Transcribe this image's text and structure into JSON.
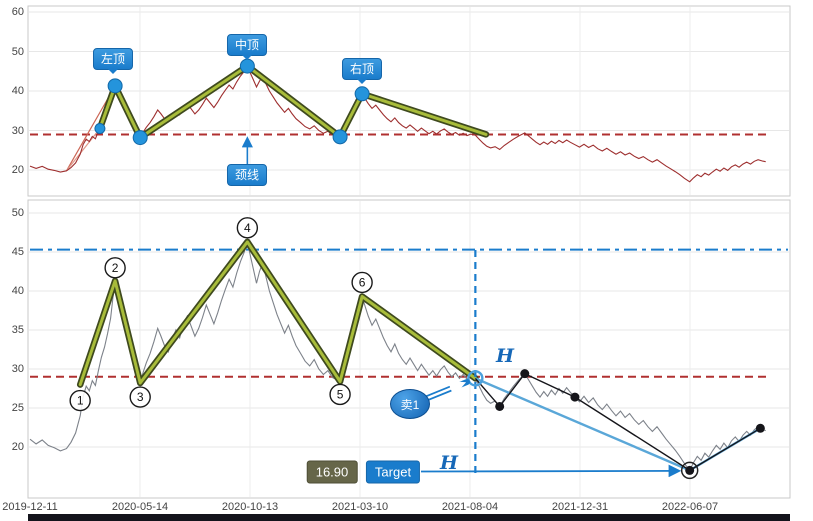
{
  "colors": {
    "accent_blue": "#1a7ccc",
    "light_blue": "#5aa7d8",
    "neckline_red": "#b03030",
    "price_red": "#9e2f2f",
    "price_gray": "#7d828a",
    "olive": "#a8bc3a",
    "olive_dark": "#3f4a1e",
    "black": "#15151a",
    "grid": "#e7e7e7",
    "target_badge_bg": "#666649"
  },
  "chart_data": {
    "type": "line",
    "x_axis": {
      "labels": [
        "2019-12-11",
        "2020-05-14",
        "2020-10-13",
        "2021-03-10",
        "2021-08-04",
        "2021-12-31",
        "2022-06-07"
      ],
      "fractions": [
        0,
        0.1447,
        0.2895,
        0.4342,
        0.5789,
        0.7237,
        0.8684
      ]
    },
    "price": {
      "name": "price",
      "points": [
        [
          0,
          21
        ],
        [
          0.008,
          20.4
        ],
        [
          0.016,
          20.9
        ],
        [
          0.024,
          20.2
        ],
        [
          0.032,
          19.9
        ],
        [
          0.04,
          19.5
        ],
        [
          0.048,
          19.8
        ],
        [
          0.054,
          20.6
        ],
        [
          0.06,
          21.8
        ],
        [
          0.066,
          24
        ],
        [
          0.07,
          26.5
        ],
        [
          0.074,
          27.8
        ],
        [
          0.078,
          27.2
        ],
        [
          0.082,
          28.5
        ],
        [
          0.086,
          27.9
        ],
        [
          0.09,
          29.8
        ],
        [
          0.094,
          31.5
        ],
        [
          0.098,
          32.8
        ],
        [
          0.102,
          34.5
        ],
        [
          0.106,
          36.5
        ],
        [
          0.109,
          39
        ],
        [
          0.112,
          41.3
        ],
        [
          0.115,
          40.2
        ],
        [
          0.118,
          38.8
        ],
        [
          0.122,
          37
        ],
        [
          0.126,
          35.5
        ],
        [
          0.13,
          33.8
        ],
        [
          0.134,
          31.5
        ],
        [
          0.138,
          30.2
        ],
        [
          0.142,
          29
        ],
        [
          0.145,
          28.2
        ],
        [
          0.149,
          29.6
        ],
        [
          0.153,
          30.8
        ],
        [
          0.158,
          32
        ],
        [
          0.163,
          33.5
        ],
        [
          0.168,
          35.2
        ],
        [
          0.172,
          34.3
        ],
        [
          0.177,
          33
        ],
        [
          0.182,
          32.2
        ],
        [
          0.187,
          33.8
        ],
        [
          0.192,
          35
        ],
        [
          0.197,
          34
        ],
        [
          0.202,
          35.8
        ],
        [
          0.207,
          36.8
        ],
        [
          0.212,
          35.5
        ],
        [
          0.217,
          34.2
        ],
        [
          0.222,
          35.2
        ],
        [
          0.227,
          36.6
        ],
        [
          0.232,
          38.2
        ],
        [
          0.237,
          37
        ],
        [
          0.242,
          35.8
        ],
        [
          0.247,
          37.2
        ],
        [
          0.252,
          38.8
        ],
        [
          0.257,
          40.2
        ],
        [
          0.262,
          41.5
        ],
        [
          0.267,
          40.5
        ],
        [
          0.272,
          42.3
        ],
        [
          0.277,
          43.8
        ],
        [
          0.282,
          45
        ],
        [
          0.286,
          46.3
        ],
        [
          0.29,
          44.5
        ],
        [
          0.294,
          42.8
        ],
        [
          0.298,
          41
        ],
        [
          0.302,
          42.5
        ],
        [
          0.306,
          43.6
        ],
        [
          0.31,
          42
        ],
        [
          0.315,
          40
        ],
        [
          0.32,
          38.5
        ],
        [
          0.325,
          37
        ],
        [
          0.33,
          35.8
        ],
        [
          0.335,
          34.6
        ],
        [
          0.34,
          35.6
        ],
        [
          0.345,
          34.2
        ],
        [
          0.35,
          33
        ],
        [
          0.356,
          32
        ],
        [
          0.362,
          31
        ],
        [
          0.368,
          30.4
        ],
        [
          0.374,
          31.2
        ],
        [
          0.38,
          30
        ],
        [
          0.386,
          29.3
        ],
        [
          0.392,
          29.8
        ],
        [
          0.398,
          28.9
        ],
        [
          0.404,
          28.6
        ],
        [
          0.408,
          28.4
        ],
        [
          0.412,
          29.5
        ],
        [
          0.416,
          31
        ],
        [
          0.42,
          32.8
        ],
        [
          0.424,
          34.5
        ],
        [
          0.428,
          36.2
        ],
        [
          0.432,
          37.8
        ],
        [
          0.437,
          39.3
        ],
        [
          0.441,
          38
        ],
        [
          0.445,
          36.8
        ],
        [
          0.45,
          35.6
        ],
        [
          0.455,
          36.4
        ],
        [
          0.46,
          35.2
        ],
        [
          0.465,
          34
        ],
        [
          0.47,
          33
        ],
        [
          0.475,
          32.2
        ],
        [
          0.48,
          33.2
        ],
        [
          0.485,
          32
        ],
        [
          0.49,
          31.2
        ],
        [
          0.495,
          30.6
        ],
        [
          0.5,
          31.4
        ],
        [
          0.505,
          30.6
        ],
        [
          0.51,
          29.8
        ],
        [
          0.515,
          30.6
        ],
        [
          0.52,
          29.9
        ],
        [
          0.525,
          29.2
        ],
        [
          0.53,
          29.8
        ],
        [
          0.535,
          29.1
        ],
        [
          0.54,
          29.9
        ],
        [
          0.545,
          30.4
        ],
        [
          0.55,
          29.6
        ],
        [
          0.555,
          29
        ],
        [
          0.56,
          29.5
        ],
        [
          0.565,
          28.8
        ],
        [
          0.57,
          29.3
        ],
        [
          0.575,
          28.7
        ],
        [
          0.58,
          29.1
        ],
        [
          0.586,
          28.8
        ],
        [
          0.591,
          27.8
        ],
        [
          0.596,
          26.8
        ],
        [
          0.601,
          26
        ],
        [
          0.606,
          25.6
        ],
        [
          0.612,
          25.9
        ],
        [
          0.618,
          25.2
        ],
        [
          0.624,
          26.2
        ],
        [
          0.63,
          27
        ],
        [
          0.636,
          27.8
        ],
        [
          0.643,
          28.6
        ],
        [
          0.651,
          29.4
        ],
        [
          0.656,
          28.6
        ],
        [
          0.661,
          27.8
        ],
        [
          0.666,
          27
        ],
        [
          0.671,
          26.4
        ],
        [
          0.676,
          27.1
        ],
        [
          0.681,
          26.5
        ],
        [
          0.686,
          27.3
        ],
        [
          0.691,
          26.7
        ],
        [
          0.696,
          27.5
        ],
        [
          0.701,
          26.9
        ],
        [
          0.706,
          27.6
        ],
        [
          0.711,
          27
        ],
        [
          0.717,
          26.4
        ],
        [
          0.723,
          25.8
        ],
        [
          0.729,
          26.5
        ],
        [
          0.735,
          25.7
        ],
        [
          0.741,
          26.3
        ],
        [
          0.747,
          25.4
        ],
        [
          0.753,
          24.8
        ],
        [
          0.759,
          25.5
        ],
        [
          0.765,
          24.7
        ],
        [
          0.771,
          24
        ],
        [
          0.777,
          24.6
        ],
        [
          0.783,
          23.8
        ],
        [
          0.789,
          24.3
        ],
        [
          0.795,
          23.5
        ],
        [
          0.801,
          22.9
        ],
        [
          0.807,
          23.4
        ],
        [
          0.813,
          22.6
        ],
        [
          0.819,
          22
        ],
        [
          0.825,
          22.6
        ],
        [
          0.831,
          21.8
        ],
        [
          0.837,
          21
        ],
        [
          0.843,
          20.3
        ],
        [
          0.849,
          19.6
        ],
        [
          0.855,
          18.8
        ],
        [
          0.861,
          17.9
        ],
        [
          0.868,
          17
        ],
        [
          0.873,
          18
        ],
        [
          0.878,
          18.8
        ],
        [
          0.883,
          18.3
        ],
        [
          0.888,
          19.2
        ],
        [
          0.893,
          18.7
        ],
        [
          0.898,
          19.5
        ],
        [
          0.903,
          20.2
        ],
        [
          0.908,
          19.7
        ],
        [
          0.913,
          20.5
        ],
        [
          0.918,
          19.9
        ],
        [
          0.923,
          20.8
        ],
        [
          0.928,
          21.3
        ],
        [
          0.933,
          20.7
        ],
        [
          0.938,
          21.5
        ],
        [
          0.943,
          22
        ],
        [
          0.948,
          21.5
        ],
        [
          0.953,
          22.2
        ],
        [
          0.958,
          22.6
        ],
        [
          0.963,
          22.3
        ],
        [
          0.968,
          22.1
        ]
      ]
    },
    "panels": [
      {
        "name": "upper-pattern-panel",
        "yticks": [
          60,
          50,
          40,
          30,
          20
        ],
        "ylim": [
          15,
          62
        ],
        "neckline": 29,
        "zigzag": [
          [
            0.092,
            30.5
          ],
          [
            0.112,
            41.3
          ],
          [
            0.145,
            28.2
          ],
          [
            0.286,
            46.3
          ],
          [
            0.408,
            28.4
          ],
          [
            0.437,
            39.3
          ],
          [
            0.6,
            29
          ]
        ],
        "pivot_dots": [
          [
            0.092,
            30.5
          ],
          [
            0.112,
            41.3
          ],
          [
            0.145,
            28.2
          ],
          [
            0.286,
            46.3
          ],
          [
            0.408,
            28.4
          ],
          [
            0.437,
            39.3
          ]
        ],
        "fan_origin": [
          0.048,
          19.8
        ],
        "fan_targets": [
          [
            0.112,
            41.3
          ],
          [
            0.092,
            30.5
          ]
        ],
        "callouts": [
          {
            "label": "左顶",
            "t": 0.112,
            "v": 41.3
          },
          {
            "label": "中顶",
            "t": 0.286,
            "v": 46.3
          },
          {
            "label": "右顶",
            "t": 0.437,
            "v": 39.3
          }
        ],
        "neckline_callout": {
          "label": "颈线",
          "t": 0.286,
          "v": 29
        }
      },
      {
        "name": "lower-signal-panel",
        "yticks": [
          50,
          45,
          40,
          35,
          30,
          25,
          20
        ],
        "ylim": [
          14.5,
          52
        ],
        "neckline": 29,
        "head_level": 45.3,
        "zigzag": [
          [
            0.066,
            28
          ],
          [
            0.112,
            41.3
          ],
          [
            0.145,
            28.2
          ],
          [
            0.286,
            46.3
          ],
          [
            0.408,
            28.4
          ],
          [
            0.437,
            39.3
          ],
          [
            0.586,
            28.8
          ]
        ],
        "pivot_numbers": [
          {
            "n": "1",
            "t": 0.066,
            "v": 28.0,
            "dy": 16
          },
          {
            "n": "2",
            "t": 0.112,
            "v": 41.3,
            "dy": -13
          },
          {
            "n": "3",
            "t": 0.145,
            "v": 28.2,
            "dy": 14
          },
          {
            "n": "4",
            "t": 0.286,
            "v": 46.3,
            "dy": -14
          },
          {
            "n": "5",
            "t": 0.408,
            "v": 28.4,
            "dy": 13
          },
          {
            "n": "6",
            "t": 0.437,
            "v": 39.3,
            "dy": -14
          }
        ],
        "signal": {
          "t": 0.586,
          "v": 28.8,
          "label": "卖1"
        },
        "h_label": "H",
        "measure_black_path": [
          [
            0.586,
            28.8
          ],
          [
            0.618,
            25.2
          ],
          [
            0.651,
            29.4
          ],
          [
            0.717,
            26.4
          ],
          [
            0.868,
            17
          ],
          [
            0.961,
            22.4
          ]
        ],
        "measure_blue_path": [
          [
            0.586,
            28.8
          ],
          [
            0.868,
            17
          ],
          [
            0.961,
            22.4
          ]
        ],
        "black_dots": [
          [
            0.618,
            25.2
          ],
          [
            0.651,
            29.4
          ],
          [
            0.717,
            26.4
          ],
          [
            0.868,
            17
          ],
          [
            0.961,
            22.4
          ]
        ],
        "target": {
          "value": "16.90",
          "label": "Target",
          "level": 16.9,
          "arrow_to": [
            0.868,
            17
          ]
        }
      }
    ]
  }
}
